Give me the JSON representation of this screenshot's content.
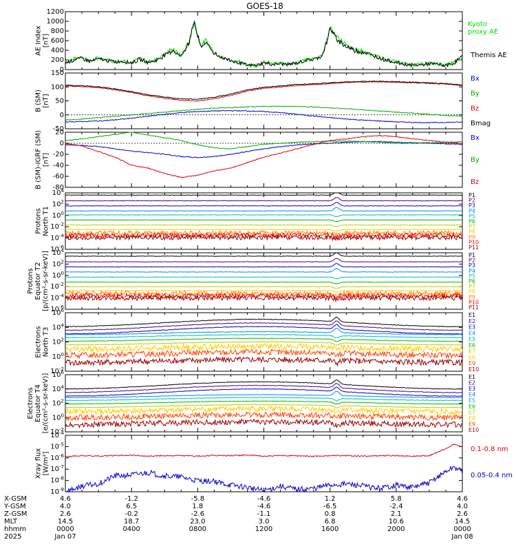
{
  "title": "GOES-18",
  "x_axis": {
    "rows": [
      {
        "label": "X-GSM",
        "values": [
          "4.6",
          "-1.2",
          "-5.8",
          "-4.6",
          "1.2",
          "5.8",
          "4.6"
        ]
      },
      {
        "label": "Y-GSM",
        "values": [
          "4.0",
          "6.5",
          "1.8",
          "-4.6",
          "-6.5",
          "-2.4",
          "4.0"
        ]
      },
      {
        "label": "Z-GSM",
        "values": [
          "2.6",
          "-0.2",
          "-2.6",
          "-1.1",
          "0.8",
          "2.1",
          "2.6"
        ]
      },
      {
        "label": "MLT",
        "values": [
          "14.5",
          "18.7",
          "23.0",
          "3.0",
          "6.8",
          "10.6",
          "14.5"
        ]
      },
      {
        "label": "hhmm",
        "values": [
          "0000",
          "0400",
          "0800",
          "1200",
          "1600",
          "2000",
          "0000"
        ]
      },
      {
        "label": "2025",
        "values": [
          "Jan 07",
          "",
          "",
          "",
          "",
          "",
          "Jan 08"
        ]
      }
    ]
  },
  "colors": {
    "black": "#000000",
    "green": "#00dd00",
    "blue": "#0000cc",
    "red": "#dd0000",
    "brown": "#880000"
  },
  "chart_data": [
    {
      "type": "line",
      "ylabel": [
        "AE Index",
        "[nT]"
      ],
      "ylim": [
        0,
        1200
      ],
      "yticks": [
        "0",
        "200",
        "400",
        "600",
        "800",
        "1000",
        "1200"
      ],
      "log": false,
      "series": [
        {
          "name": "Kyoto proxy AE",
          "color": "#00dd00"
        },
        {
          "name": "Themis AE",
          "color": "#000000"
        }
      ],
      "x_hours": [
        0,
        0.5,
        1,
        1.5,
        2,
        2.5,
        3,
        3.5,
        4,
        4.5,
        5,
        5.5,
        6,
        6.5,
        7,
        7.5,
        7.8,
        8,
        8.2,
        8.5,
        9,
        9.5,
        10,
        10.5,
        11,
        11.5,
        12,
        12.5,
        13,
        13.5,
        14,
        14.5,
        15,
        15.5,
        15.8,
        16,
        16.3,
        16.7,
        17,
        17.5,
        18,
        18.5,
        19,
        19.5,
        20,
        20.5,
        21,
        21.5,
        22,
        22.5,
        23,
        23.5,
        24
      ],
      "values": [
        [
          150,
          220,
          260,
          180,
          240,
          200,
          170,
          190,
          150,
          230,
          160,
          210,
          330,
          420,
          280,
          600,
          1050,
          700,
          500,
          600,
          360,
          250,
          200,
          150,
          100,
          90,
          150,
          120,
          130,
          120,
          140,
          200,
          220,
          300,
          600,
          900,
          700,
          600,
          500,
          420,
          380,
          320,
          260,
          200,
          160,
          120,
          100,
          110,
          130,
          120,
          90,
          150,
          220
        ],
        [
          140,
          200,
          240,
          170,
          220,
          190,
          160,
          170,
          140,
          210,
          150,
          190,
          300,
          400,
          270,
          580,
          1020,
          680,
          480,
          560,
          340,
          240,
          190,
          140,
          90,
          80,
          140,
          110,
          120,
          110,
          130,
          190,
          210,
          280,
          560,
          860,
          670,
          560,
          470,
          400,
          360,
          300,
          240,
          190,
          150,
          110,
          90,
          100,
          120,
          110,
          80,
          140,
          280
        ]
      ]
    },
    {
      "type": "line",
      "ylabel": [
        "B (SM)",
        "[nT]"
      ],
      "ylim": [
        -50,
        150
      ],
      "yticks": [
        "-50",
        "0",
        "50",
        "100",
        "150"
      ],
      "log": false,
      "series": [
        {
          "name": "Bx",
          "color": "#0000cc"
        },
        {
          "name": "By",
          "color": "#00aa00"
        },
        {
          "name": "Bz",
          "color": "#dd0000"
        },
        {
          "name": "Bmag",
          "color": "#000000"
        }
      ],
      "x_hours": [
        0,
        1,
        2,
        3,
        4,
        5,
        6,
        7,
        8,
        9,
        10,
        11,
        12,
        13,
        14,
        15,
        16,
        17,
        18,
        19,
        20,
        21,
        22,
        23,
        24
      ],
      "values": [
        [
          -25,
          -24,
          -22,
          -18,
          -12,
          -5,
          2,
          8,
          12,
          14,
          15,
          14,
          12,
          8,
          2,
          -4,
          -10,
          -15,
          -19,
          -22,
          -25,
          -27,
          -28,
          -27,
          -26
        ],
        [
          -18,
          -15,
          -10,
          -5,
          0,
          5,
          10,
          15,
          20,
          24,
          26,
          28,
          30,
          31,
          30,
          28,
          25,
          22,
          18,
          14,
          10,
          6,
          2,
          -2,
          -5
        ],
        [
          103,
          101,
          98,
          90,
          80,
          68,
          60,
          52,
          50,
          58,
          70,
          85,
          95,
          100,
          105,
          108,
          112,
          116,
          118,
          118,
          117,
          115,
          113,
          110,
          105
        ],
        [
          106,
          104,
          101,
          93,
          83,
          72,
          64,
          57,
          56,
          63,
          75,
          89,
          99,
          104,
          109,
          112,
          115,
          118,
          120,
          120,
          119,
          117,
          115,
          112,
          107
        ]
      ]
    },
    {
      "type": "line",
      "ylabel": [
        "B (SM)-IGRF (SM)",
        "[nT]"
      ],
      "ylim": [
        -80,
        20
      ],
      "yticks": [
        "-80",
        "-60",
        "-40",
        "-20",
        "0",
        "20"
      ],
      "log": false,
      "series": [
        {
          "name": "Bx",
          "color": "#0000cc"
        },
        {
          "name": "By",
          "color": "#00aa00"
        },
        {
          "name": "Bz",
          "color": "#dd0000"
        }
      ],
      "x_hours": [
        0,
        1,
        2,
        3,
        4,
        5,
        6,
        7,
        8,
        9,
        10,
        11,
        12,
        13,
        14,
        15,
        16,
        17,
        18,
        19,
        20,
        21,
        22,
        23,
        24
      ],
      "values": [
        [
          -3,
          -4,
          -6,
          -10,
          -14,
          -17,
          -20,
          -24,
          -26,
          -24,
          -20,
          -15,
          -10,
          -6,
          -3,
          -1,
          0,
          2,
          3,
          3,
          2,
          1,
          0,
          -1,
          -2
        ],
        [
          5,
          8,
          12,
          16,
          20,
          15,
          10,
          5,
          -3,
          -8,
          -10,
          -6,
          -2,
          0,
          2,
          3,
          4,
          4,
          3,
          2,
          0,
          0,
          1,
          2,
          3
        ],
        [
          0,
          -5,
          -15,
          -25,
          -40,
          -45,
          -55,
          -62,
          -58,
          -50,
          -45,
          -35,
          -25,
          -18,
          -10,
          -2,
          5,
          8,
          12,
          14,
          12,
          8,
          5,
          2,
          0
        ]
      ]
    },
    {
      "type": "line",
      "ylabel": [
        "Protons",
        "North T1"
      ],
      "ylim_exp": [
        -6,
        4
      ],
      "yticks": [
        "10^4",
        "10^2",
        "10^0",
        "10^-2",
        "10^-4",
        "10^-6"
      ],
      "log": true,
      "series_labels": [
        "P1",
        "P2",
        "P3",
        "P4",
        "P5",
        "P6",
        "P7",
        "P8",
        "P9",
        "P10",
        "P11"
      ],
      "series_colors": [
        "#000000",
        "#4b0082",
        "#0000cc",
        "#0088ff",
        "#00bbbb",
        "#00bb00",
        "#bbcc00",
        "#ffcc00",
        "#ff8800",
        "#ff0000",
        "#990000"
      ],
      "levels_exp": [
        3.6,
        2.6,
        1.7,
        0.8,
        0.1,
        -0.8,
        -1.7,
        -2.5,
        -3.1,
        -3.5,
        -3.9
      ],
      "disturbance_at_hour": 16.2
    },
    {
      "type": "line",
      "ylabel": [
        "Protons",
        "Equator T2",
        "[p/(cm²-s-sr-keV)]"
      ],
      "ylim_exp": [
        -6,
        4
      ],
      "yticks": [
        "10^4",
        "10^2",
        "10^0",
        "10^-2",
        "10^-4",
        "10^-6"
      ],
      "log": true,
      "series_labels": [
        "P1",
        "P2",
        "P3",
        "P4",
        "P5",
        "P6",
        "P7",
        "P8",
        "P9",
        "P10",
        "P11"
      ],
      "series_colors": [
        "#000000",
        "#4b0082",
        "#0000cc",
        "#0088ff",
        "#00bbbb",
        "#00bb00",
        "#bbcc00",
        "#ffcc00",
        "#ff8800",
        "#ff0000",
        "#990000"
      ],
      "levels_exp": [
        3.4,
        2.4,
        1.5,
        0.6,
        -0.3,
        -1.2,
        -2.0,
        -2.7,
        -3.2,
        -3.6,
        -4.0
      ],
      "disturbance_at_hour": 16.2
    },
    {
      "type": "line",
      "ylabel": [
        "Electrons",
        "North T3"
      ],
      "ylim_exp": [
        -2,
        6
      ],
      "yticks": [
        "10^6",
        "10^4",
        "10^2",
        "10^0",
        "10^-2"
      ],
      "log": true,
      "series_labels": [
        "E1",
        "E2",
        "E3",
        "E4",
        "E5",
        "E6",
        "E7",
        "E8",
        "E9",
        "E10"
      ],
      "series_colors": [
        "#000000",
        "#4b0082",
        "#0000cc",
        "#0088ff",
        "#00bbbb",
        "#00bb00",
        "#bbcc00",
        "#ffcc00",
        "#ff4400",
        "#990000"
      ],
      "levels_exp": [
        4.6,
        4.1,
        3.6,
        3.2,
        2.8,
        2.3,
        1.8,
        1.2,
        0.4,
        -0.6
      ],
      "disturbance_at_hour": 16.2
    },
    {
      "type": "line",
      "ylabel": [
        "Electrons",
        "Equator T4",
        "[e/(cm²-s-sr-keV)]"
      ],
      "ylim_exp": [
        -2,
        6
      ],
      "yticks": [
        "10^6",
        "10^4",
        "10^2",
        "10^0",
        "10^-2"
      ],
      "log": true,
      "series_labels": [
        "E1",
        "E2",
        "E3",
        "E4",
        "E5",
        "E6",
        "E7",
        "E8",
        "E9",
        "E10"
      ],
      "series_colors": [
        "#000000",
        "#4b0082",
        "#0000cc",
        "#0088ff",
        "#00bbbb",
        "#00bb00",
        "#bbcc00",
        "#ffcc00",
        "#ff4400",
        "#990000"
      ],
      "levels_exp": [
        4.5,
        4.0,
        3.5,
        3.0,
        2.6,
        2.1,
        1.6,
        1.0,
        0.2,
        -0.8
      ],
      "disturbance_at_hour": 16.2
    },
    {
      "type": "line",
      "ylabel": [
        "Xray flux",
        "[W/m²]"
      ],
      "ylim_exp": [
        -9,
        -4
      ],
      "yticks": [
        "10^-4",
        "10^-5",
        "10^-6",
        "10^-7",
        "10^-8",
        "10^-9"
      ],
      "log": true,
      "series": [
        {
          "name": "0.1-0.8 nm",
          "color": "#dd0000"
        },
        {
          "name": "0.05-0.4 nm",
          "color": "#0000cc"
        }
      ],
      "x_hours": [
        0,
        1,
        2,
        3,
        4,
        5,
        6,
        7,
        8,
        9,
        10,
        11,
        12,
        13,
        14,
        15,
        16,
        17,
        18,
        19,
        20,
        21,
        22,
        23,
        23.5,
        24
      ],
      "values_exp": [
        [
          -5.9,
          -5.8,
          -5.85,
          -5.8,
          -5.75,
          -5.85,
          -5.8,
          -5.8,
          -5.85,
          -5.8,
          -5.8,
          -5.75,
          -5.85,
          -5.8,
          -5.8,
          -5.85,
          -5.8,
          -5.8,
          -5.85,
          -5.8,
          -5.8,
          -5.85,
          -5.8,
          -5.2,
          -4.8,
          -5.0
        ],
        [
          -9.0,
          -8.5,
          -8.3,
          -7.6,
          -7.5,
          -7.3,
          -7.6,
          -7.7,
          -8.0,
          -8.1,
          -8.4,
          -8.6,
          -8.9,
          -8.5,
          -8.8,
          -8.7,
          -8.4,
          -8.3,
          -8.5,
          -8.7,
          -8.4,
          -8.6,
          -8.2,
          -7.2,
          -6.8,
          -7.2
        ]
      ]
    }
  ]
}
